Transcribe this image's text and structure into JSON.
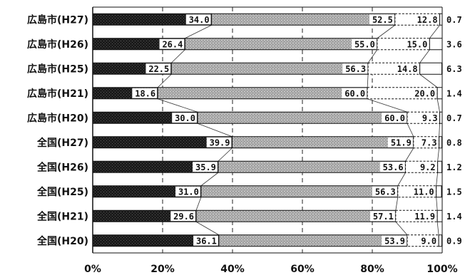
{
  "chart_data": {
    "type": "bar",
    "orientation": "horizontal",
    "stacked": "percent",
    "categories": [
      "広島市(H27)",
      "広島市(H26)",
      "広島市(H25)",
      "広島市(H21)",
      "広島市(H20)",
      "全国(H27)",
      "全国(H26)",
      "全国(H25)",
      "全国(H21)",
      "全国(H20)"
    ],
    "series": [
      {
        "values": [
          34.0,
          26.4,
          22.5,
          18.6,
          30.0,
          39.9,
          35.9,
          31.0,
          29.6,
          36.1
        ]
      },
      {
        "values": [
          52.5,
          55.0,
          56.3,
          60.0,
          60.0,
          51.9,
          53.6,
          56.3,
          57.1,
          53.9
        ]
      },
      {
        "values": [
          12.8,
          15.0,
          14.8,
          20.0,
          9.3,
          7.3,
          9.2,
          11.0,
          11.9,
          9.0
        ]
      },
      {
        "values": [
          0.7,
          3.6,
          6.3,
          1.4,
          0.7,
          0.8,
          1.2,
          1.5,
          1.4,
          0.9
        ]
      }
    ],
    "value_labels": [
      [
        "34.0",
        "26.4",
        "22.5",
        "18.6",
        "30.0",
        "39.9",
        "35.9",
        "31.0",
        "29.6",
        "36.1"
      ],
      [
        "52.5",
        "55.0",
        "56.3",
        "60.0",
        "60.0",
        "51.9",
        "53.6",
        "56.3",
        "57.1",
        "53.9"
      ],
      [
        "12.8",
        "15.0",
        "14.8",
        "20.0",
        "9.3",
        "7.3",
        "9.2",
        "11.0",
        "11.9",
        "9.0"
      ],
      [
        "0.7",
        "3.6",
        "6.3",
        "1.4",
        "0.7",
        "0.8",
        "1.2",
        "1.5",
        "1.4",
        "0.9"
      ]
    ],
    "xticks": [
      "0%",
      "20%",
      "40%",
      "60%",
      "80%",
      "100%"
    ],
    "xlim": [
      0,
      100
    ],
    "grid": "vertical dashed",
    "connector_lines": true,
    "colors": [
      "#1a1a1a",
      "#a9a9a9",
      "#ffffff",
      "#ffffff"
    ]
  }
}
